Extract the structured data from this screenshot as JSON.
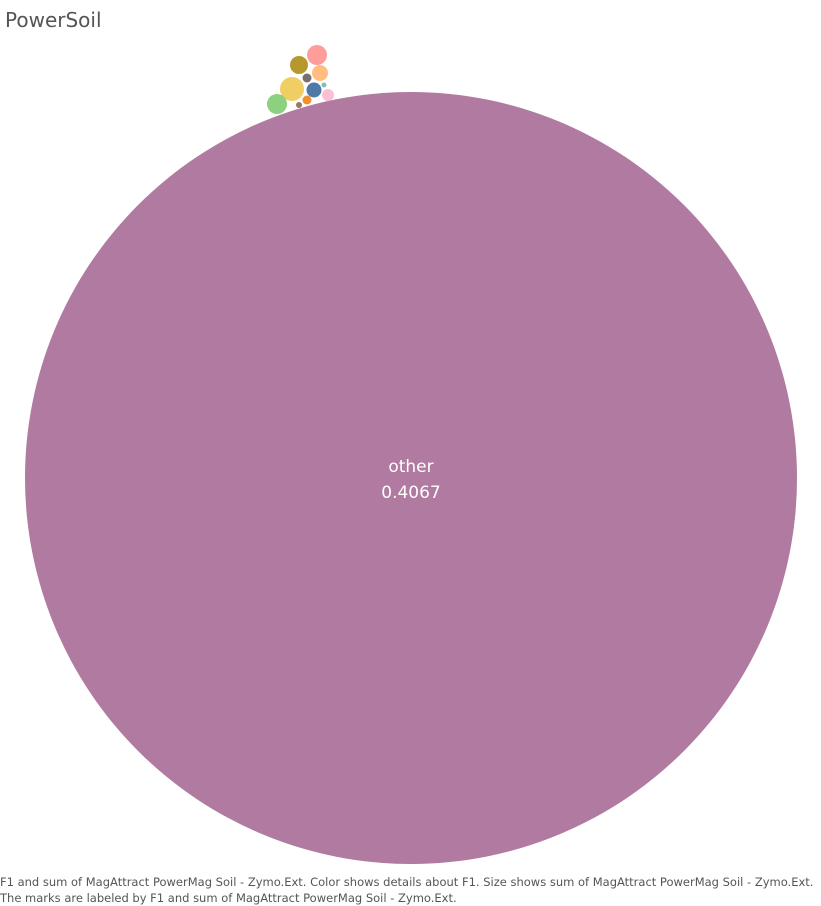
{
  "title": "PowerSoil",
  "caption": {
    "line1": "F1 and sum of MagAttract PowerMag Soil - Zymo.Ext.  Color shows details about F1.  Size shows sum of MagAttract PowerMag Soil - Zymo.Ext.",
    "line2": "The marks are labeled by F1 and sum of MagAttract PowerMag Soil - Zymo.Ext."
  },
  "chart_data": {
    "type": "bubble",
    "title": "PowerSoil",
    "size_measure": "sum of MagAttract PowerMag Soil - Zymo.Ext.",
    "color_dimension": "F1",
    "labeled_bubbles": [
      {
        "name": "other",
        "value": "0.4067",
        "color": "#b07aa1"
      }
    ],
    "unlabeled_bubble_colors": [
      "#ff9d9a",
      "#b6992d",
      "#ffbe7d",
      "#79706e",
      "#f1ce63",
      "#4e79a7",
      "#8cd17d",
      "#f28e2b",
      "#fabfd2",
      "#9c755f",
      "#86bcb6"
    ]
  }
}
